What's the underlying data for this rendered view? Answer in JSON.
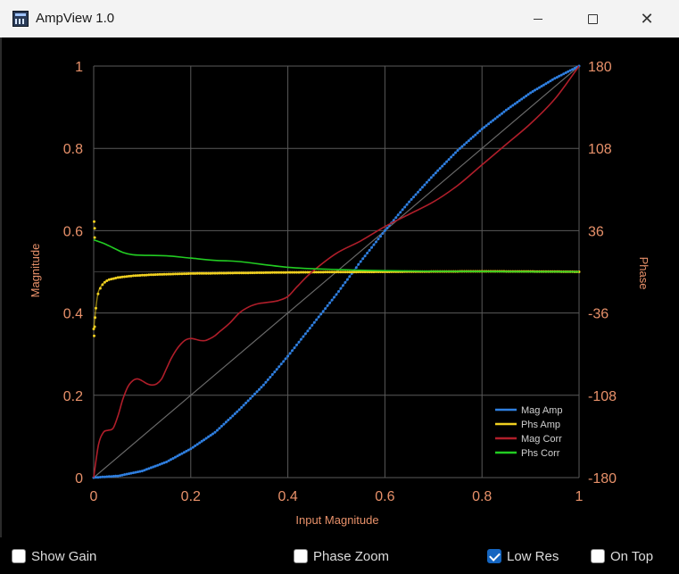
{
  "window": {
    "title": "AmpView 1.0",
    "icon": "app-icon"
  },
  "controls": {
    "show_gain": {
      "label": "Show Gain",
      "checked": false
    },
    "phase_zoom": {
      "label": "Phase Zoom",
      "checked": false
    },
    "low_res": {
      "label": "Low Res",
      "checked": true
    },
    "on_top": {
      "label": "On Top",
      "checked": false
    }
  },
  "chart_data": {
    "type": "line",
    "title": "",
    "xlabel": "Input Magnitude",
    "ylabel": "Magnitude",
    "y2label": "Phase",
    "xlim": [
      0,
      1
    ],
    "ylim": [
      0,
      1
    ],
    "y2lim": [
      -180,
      180
    ],
    "x_ticks": [
      "0",
      "0.2",
      "0.4",
      "0.6",
      "0.8",
      "1"
    ],
    "y_ticks": [
      "0",
      "0.2",
      "0.4",
      "0.6",
      "0.8",
      "1"
    ],
    "y2_ticks": [
      "-180",
      "-108",
      "-36",
      "36",
      "108",
      "180"
    ],
    "grid": true,
    "legend_position": "bottom-right",
    "colors": {
      "background": "#000000",
      "grid": "#5a5a5a",
      "axis_text": "#e8916a",
      "label_text": "#e8916a",
      "legend_text": "#d0d0d0",
      "reference": "#6a6a6a"
    },
    "series": [
      {
        "name": "Mag Amp",
        "color": "#2f7fe0",
        "axis": "left",
        "style": "dotted",
        "x": [
          0,
          0.05,
          0.1,
          0.15,
          0.2,
          0.25,
          0.3,
          0.35,
          0.4,
          0.45,
          0.5,
          0.55,
          0.6,
          0.65,
          0.7,
          0.75,
          0.8,
          0.85,
          0.9,
          0.95,
          1.0
        ],
        "y": [
          0,
          0.004,
          0.016,
          0.038,
          0.07,
          0.11,
          0.165,
          0.225,
          0.295,
          0.37,
          0.445,
          0.525,
          0.6,
          0.67,
          0.735,
          0.795,
          0.847,
          0.893,
          0.935,
          0.97,
          1.0
        ]
      },
      {
        "name": "Phs Amp",
        "color": "#f0d020",
        "axis": "right",
        "style": "dotted",
        "x": [
          0.0,
          0.005,
          0.01,
          0.02,
          0.03,
          0.05,
          0.08,
          0.12,
          0.2,
          0.3,
          0.4,
          0.5,
          0.6,
          0.7,
          0.8,
          0.9,
          1.0
        ],
        "y": [
          -50,
          -30,
          -17,
          -10,
          -7,
          -5,
          -3.5,
          -2.5,
          -1.5,
          -1,
          -0.5,
          -0.2,
          0,
          0.3,
          0.4,
          0.3,
          0
        ]
      },
      {
        "name": "Mag Corr",
        "color": "#b01e2a",
        "axis": "left",
        "style": "solid",
        "x": [
          0,
          0.01,
          0.02,
          0.03,
          0.04,
          0.05,
          0.06,
          0.07,
          0.08,
          0.09,
          0.1,
          0.11,
          0.12,
          0.13,
          0.14,
          0.15,
          0.16,
          0.17,
          0.18,
          0.19,
          0.2,
          0.21,
          0.22,
          0.23,
          0.24,
          0.25,
          0.26,
          0.28,
          0.3,
          0.32,
          0.34,
          0.36,
          0.38,
          0.4,
          0.42,
          0.45,
          0.5,
          0.55,
          0.6,
          0.65,
          0.7,
          0.75,
          0.8,
          0.85,
          0.9,
          0.95,
          1.0
        ],
        "y": [
          0,
          0.08,
          0.11,
          0.115,
          0.12,
          0.15,
          0.19,
          0.22,
          0.235,
          0.24,
          0.235,
          0.228,
          0.225,
          0.228,
          0.24,
          0.265,
          0.29,
          0.31,
          0.325,
          0.335,
          0.338,
          0.336,
          0.333,
          0.333,
          0.338,
          0.345,
          0.355,
          0.375,
          0.4,
          0.415,
          0.423,
          0.426,
          0.43,
          0.44,
          0.465,
          0.5,
          0.545,
          0.575,
          0.61,
          0.64,
          0.67,
          0.71,
          0.76,
          0.81,
          0.86,
          0.92,
          1.0
        ]
      },
      {
        "name": "Phs Corr",
        "color": "#22cc22",
        "axis": "right",
        "style": "solid",
        "x": [
          0.0,
          0.02,
          0.04,
          0.06,
          0.08,
          0.1,
          0.15,
          0.2,
          0.25,
          0.3,
          0.4,
          0.5,
          0.6,
          0.7,
          0.8,
          0.9,
          1.0
        ],
        "y": [
          28,
          25,
          21,
          17,
          15,
          14.5,
          14,
          12,
          10,
          9,
          4,
          2,
          1,
          0.5,
          0.2,
          0.1,
          0
        ]
      },
      {
        "name": "",
        "color": "#6a6a6a",
        "axis": "left",
        "style": "reference",
        "x": [
          0,
          1
        ],
        "y": [
          0,
          1
        ]
      }
    ],
    "phase_spike_points": [
      {
        "x": 0.001,
        "phase": 44
      },
      {
        "x": 0.002,
        "phase": 38
      },
      {
        "x": 0.002,
        "phase": 30
      },
      {
        "x": 0.001,
        "phase": -56
      },
      {
        "x": 0.002,
        "phase": -48
      },
      {
        "x": 0.003,
        "phase": -40
      }
    ]
  }
}
